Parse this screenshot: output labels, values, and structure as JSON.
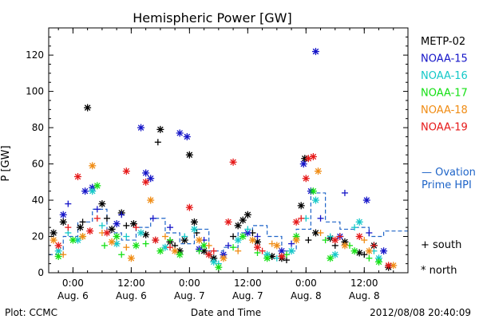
{
  "chart_data": {
    "type": "scatter",
    "title": "Hemispheric Power [GW]",
    "xlabel": "Date and Time",
    "ylabel": "P [GW]",
    "ylim": [
      0,
      135
    ],
    "yticks": [
      0,
      20,
      40,
      60,
      80,
      100,
      120
    ],
    "xlim": [
      "2012-08-05 19:00",
      "2012-08-08 21:00"
    ],
    "xticks": [
      {
        "time": "2012-08-06 00:00",
        "line1": "0:00",
        "line2": "Aug. 6"
      },
      {
        "time": "2012-08-06 12:00",
        "line1": "12:00",
        "line2": "Aug. 6"
      },
      {
        "time": "2012-08-07 00:00",
        "line1": "0:00",
        "line2": "Aug. 7"
      },
      {
        "time": "2012-08-07 12:00",
        "line1": "12:00",
        "line2": "Aug. 7"
      },
      {
        "time": "2012-08-08 00:00",
        "line1": "0:00",
        "line2": "Aug. 8"
      },
      {
        "time": "2012-08-08 12:00",
        "line1": "12:00",
        "line2": "Aug. 8"
      }
    ],
    "legend_position": "right",
    "markers": {
      "south": "+",
      "north": "*"
    },
    "series": [
      {
        "name": "METP-02",
        "color": "#000000",
        "north": [
          [
            "2012-08-05 20:00",
            22
          ],
          [
            "2012-08-05 22:00",
            28
          ],
          [
            "2012-08-06 01:30",
            25
          ],
          [
            "2012-08-06 03:00",
            91
          ],
          [
            "2012-08-06 06:00",
            38
          ],
          [
            "2012-08-06 08:00",
            24
          ],
          [
            "2012-08-06 10:00",
            33
          ],
          [
            "2012-08-06 12:30",
            27
          ],
          [
            "2012-08-06 15:00",
            21
          ],
          [
            "2012-08-06 18:00",
            79
          ],
          [
            "2012-08-06 20:00",
            17
          ],
          [
            "2012-08-06 22:00",
            12
          ],
          [
            "2012-08-06 23:00",
            18
          ],
          [
            "2012-08-07 00:00",
            65
          ],
          [
            "2012-08-07 01:00",
            28
          ],
          [
            "2012-08-07 03:00",
            12
          ],
          [
            "2012-08-07 05:00",
            8
          ],
          [
            "2012-08-07 10:00",
            26
          ],
          [
            "2012-08-07 11:00",
            29
          ],
          [
            "2012-08-07 12:00",
            32
          ],
          [
            "2012-08-07 14:00",
            17
          ],
          [
            "2012-08-07 17:00",
            9
          ],
          [
            "2012-08-07 19:00",
            8
          ],
          [
            "2012-08-07 23:00",
            37
          ],
          [
            "2012-08-07 23:45",
            63
          ],
          [
            "2012-08-08 02:00",
            22
          ],
          [
            "2012-08-08 05:00",
            19
          ],
          [
            "2012-08-08 08:00",
            17
          ],
          [
            "2012-08-08 11:00",
            11
          ],
          [
            "2012-08-08 14:00",
            15
          ],
          [
            "2012-08-08 17:00",
            3
          ]
        ],
        "south": [
          [
            "2012-08-06 02:00",
            28
          ],
          [
            "2012-08-06 07:00",
            30
          ],
          [
            "2012-08-06 11:00",
            26
          ],
          [
            "2012-08-06 17:30",
            72
          ],
          [
            "2012-08-06 21:00",
            15
          ],
          [
            "2012-08-07 01:30",
            22
          ],
          [
            "2012-08-07 04:00",
            10
          ],
          [
            "2012-08-07 09:00",
            20
          ],
          [
            "2012-08-07 13:00",
            22
          ],
          [
            "2012-08-07 20:00",
            7
          ],
          [
            "2012-08-08 00:30",
            18
          ],
          [
            "2012-08-08 06:00",
            15
          ],
          [
            "2012-08-08 12:00",
            10
          ]
        ]
      },
      {
        "name": "NOAA-15",
        "color": "#1515c8",
        "north": [
          [
            "2012-08-05 22:00",
            32
          ],
          [
            "2012-08-06 02:30",
            45
          ],
          [
            "2012-08-06 04:00",
            47
          ],
          [
            "2012-08-06 09:00",
            27
          ],
          [
            "2012-08-06 14:00",
            80
          ],
          [
            "2012-08-06 15:00",
            55
          ],
          [
            "2012-08-06 16:00",
            52
          ],
          [
            "2012-08-06 22:00",
            77
          ],
          [
            "2012-08-06 23:30",
            75
          ],
          [
            "2012-08-07 02:00",
            13
          ],
          [
            "2012-08-07 07:00",
            10
          ],
          [
            "2012-08-07 12:00",
            22
          ],
          [
            "2012-08-07 19:00",
            12
          ],
          [
            "2012-08-07 23:30",
            60
          ],
          [
            "2012-08-08 01:00",
            45
          ],
          [
            "2012-08-08 02:00",
            122
          ],
          [
            "2012-08-08 07:00",
            20
          ],
          [
            "2012-08-08 12:30",
            40
          ],
          [
            "2012-08-08 16:00",
            12
          ]
        ],
        "south": [
          [
            "2012-08-05 23:00",
            38
          ],
          [
            "2012-08-06 05:00",
            35
          ],
          [
            "2012-08-06 10:00",
            32
          ],
          [
            "2012-08-06 16:30",
            30
          ],
          [
            "2012-08-06 20:00",
            25
          ],
          [
            "2012-08-07 03:00",
            18
          ],
          [
            "2012-08-07 08:00",
            15
          ],
          [
            "2012-08-07 14:00",
            20
          ],
          [
            "2012-08-07 21:00",
            16
          ],
          [
            "2012-08-08 03:00",
            30
          ],
          [
            "2012-08-08 08:00",
            44
          ],
          [
            "2012-08-08 13:00",
            22
          ]
        ]
      },
      {
        "name": "NOAA-16",
        "color": "#15c8c8",
        "north": [
          [
            "2012-08-05 21:00",
            12
          ],
          [
            "2012-08-06 01:00",
            18
          ],
          [
            "2012-08-06 04:00",
            45
          ],
          [
            "2012-08-06 09:00",
            16
          ],
          [
            "2012-08-06 14:00",
            22
          ],
          [
            "2012-08-06 19:00",
            14
          ],
          [
            "2012-08-07 01:00",
            24
          ],
          [
            "2012-08-07 05:00",
            6
          ],
          [
            "2012-08-07 10:00",
            18
          ],
          [
            "2012-08-07 16:00",
            10
          ],
          [
            "2012-08-07 21:00",
            12
          ],
          [
            "2012-08-08 02:00",
            40
          ],
          [
            "2012-08-08 06:00",
            10
          ],
          [
            "2012-08-08 11:00",
            28
          ],
          [
            "2012-08-08 15:00",
            8
          ]
        ],
        "south": [
          [
            "2012-08-05 23:00",
            22
          ],
          [
            "2012-08-06 06:00",
            26
          ],
          [
            "2012-08-06 11:00",
            20
          ],
          [
            "2012-08-06 17:00",
            18
          ],
          [
            "2012-08-06 23:00",
            20
          ],
          [
            "2012-08-07 06:00",
            5
          ],
          [
            "2012-08-07 12:00",
            24
          ],
          [
            "2012-08-07 18:00",
            8
          ],
          [
            "2012-08-08 00:00",
            30
          ],
          [
            "2012-08-08 05:00",
            20
          ],
          [
            "2012-08-08 10:00",
            25
          ],
          [
            "2012-08-08 14:00",
            12
          ]
        ]
      },
      {
        "name": "NOAA-17",
        "color": "#15e015",
        "north": [
          [
            "2012-08-05 21:00",
            9
          ],
          [
            "2012-08-06 00:00",
            18
          ],
          [
            "2012-08-06 05:00",
            48
          ],
          [
            "2012-08-06 09:00",
            20
          ],
          [
            "2012-08-06 13:00",
            15
          ],
          [
            "2012-08-06 18:00",
            12
          ],
          [
            "2012-08-06 22:00",
            10
          ],
          [
            "2012-08-07 03:00",
            15
          ],
          [
            "2012-08-07 06:00",
            3
          ],
          [
            "2012-08-07 11:00",
            20
          ],
          [
            "2012-08-07 16:00",
            8
          ],
          [
            "2012-08-07 22:00",
            20
          ],
          [
            "2012-08-08 01:30",
            45
          ],
          [
            "2012-08-08 05:00",
            8
          ],
          [
            "2012-08-08 10:00",
            12
          ],
          [
            "2012-08-08 15:00",
            6
          ]
        ],
        "south": [
          [
            "2012-08-06 02:00",
            20
          ],
          [
            "2012-08-06 06:30",
            15
          ],
          [
            "2012-08-06 10:00",
            10
          ],
          [
            "2012-08-06 15:00",
            16
          ],
          [
            "2012-08-06 20:00",
            18
          ],
          [
            "2012-08-07 02:00",
            12
          ],
          [
            "2012-08-07 09:00",
            14
          ],
          [
            "2012-08-07 14:00",
            11
          ],
          [
            "2012-08-07 20:00",
            10
          ],
          [
            "2012-08-08 04:00",
            18
          ],
          [
            "2012-08-08 09:00",
            15
          ],
          [
            "2012-08-08 13:00",
            8
          ]
        ]
      },
      {
        "name": "NOAA-18",
        "color": "#f08c14",
        "north": [
          [
            "2012-08-05 20:00",
            18
          ],
          [
            "2012-08-06 02:00",
            20
          ],
          [
            "2012-08-06 04:00",
            59
          ],
          [
            "2012-08-06 08:00",
            17
          ],
          [
            "2012-08-06 12:00",
            8
          ],
          [
            "2012-08-06 16:00",
            40
          ],
          [
            "2012-08-06 21:00",
            12
          ],
          [
            "2012-08-07 02:00",
            18
          ],
          [
            "2012-08-07 07:00",
            8
          ],
          [
            "2012-08-07 13:00",
            18
          ],
          [
            "2012-08-07 18:00",
            15
          ],
          [
            "2012-08-07 22:00",
            18
          ],
          [
            "2012-08-08 02:30",
            56
          ],
          [
            "2012-08-08 08:00",
            15
          ],
          [
            "2012-08-08 13:00",
            12
          ],
          [
            "2012-08-08 18:00",
            4
          ]
        ],
        "south": [
          [
            "2012-08-05 22:00",
            10
          ],
          [
            "2012-08-06 06:00",
            22
          ],
          [
            "2012-08-06 11:00",
            14
          ],
          [
            "2012-08-06 19:00",
            20
          ],
          [
            "2012-08-07 04:00",
            15
          ],
          [
            "2012-08-07 10:00",
            12
          ],
          [
            "2012-08-07 17:00",
            16
          ],
          [
            "2012-08-08 03:00",
            22
          ],
          [
            "2012-08-08 12:00",
            18
          ]
        ]
      },
      {
        "name": "NOAA-19",
        "color": "#e61919",
        "north": [
          [
            "2012-08-05 21:00",
            15
          ],
          [
            "2012-08-06 01:00",
            53
          ],
          [
            "2012-08-06 03:30",
            23
          ],
          [
            "2012-08-06 07:00",
            22
          ],
          [
            "2012-08-06 11:00",
            56
          ],
          [
            "2012-08-06 15:00",
            50
          ],
          [
            "2012-08-06 17:00",
            18
          ],
          [
            "2012-08-07 00:00",
            36
          ],
          [
            "2012-08-07 04:00",
            10
          ],
          [
            "2012-08-07 08:00",
            28
          ],
          [
            "2012-08-07 09:00",
            61
          ],
          [
            "2012-08-07 14:00",
            14
          ],
          [
            "2012-08-07 19:00",
            9
          ],
          [
            "2012-08-07 22:00",
            28
          ],
          [
            "2012-08-08 00:00",
            52
          ],
          [
            "2012-08-08 00:30",
            63
          ],
          [
            "2012-08-08 01:30",
            64
          ],
          [
            "2012-08-08 06:00",
            18
          ],
          [
            "2012-08-08 11:00",
            20
          ],
          [
            "2012-08-08 17:00",
            4
          ]
        ],
        "south": [
          [
            "2012-08-05 23:00",
            25
          ],
          [
            "2012-08-06 05:00",
            30
          ],
          [
            "2012-08-06 13:00",
            25
          ],
          [
            "2012-08-06 20:00",
            14
          ],
          [
            "2012-08-07 05:00",
            12
          ],
          [
            "2012-08-07 15:00",
            12
          ],
          [
            "2012-08-07 23:00",
            30
          ],
          [
            "2012-08-08 07:00",
            20
          ],
          [
            "2012-08-08 14:00",
            15
          ]
        ]
      }
    ],
    "model": {
      "name": "Ovation Prime HPI",
      "color": "#1e64c8",
      "steps": [
        [
          "2012-08-05 19:00",
          10
        ],
        [
          "2012-08-05 22:00",
          20
        ],
        [
          "2012-08-06 01:00",
          28
        ],
        [
          "2012-08-06 04:00",
          35
        ],
        [
          "2012-08-06 07:00",
          22
        ],
        [
          "2012-08-06 10:00",
          18
        ],
        [
          "2012-08-06 13:00",
          25
        ],
        [
          "2012-08-06 16:00",
          30
        ],
        [
          "2012-08-06 19:00",
          22
        ],
        [
          "2012-08-06 22:00",
          16
        ],
        [
          "2012-08-07 01:00",
          24
        ],
        [
          "2012-08-07 04:00",
          12
        ],
        [
          "2012-08-07 07:00",
          14
        ],
        [
          "2012-08-07 10:00",
          22
        ],
        [
          "2012-08-07 13:00",
          26
        ],
        [
          "2012-08-07 16:00",
          20
        ],
        [
          "2012-08-07 19:00",
          12
        ],
        [
          "2012-08-07 22:00",
          24
        ],
        [
          "2012-08-08 01:00",
          44
        ],
        [
          "2012-08-08 04:00",
          28
        ],
        [
          "2012-08-08 07:00",
          24
        ],
        [
          "2012-08-08 10:00",
          25
        ],
        [
          "2012-08-08 13:00",
          20
        ],
        [
          "2012-08-08 16:00",
          23
        ],
        [
          "2012-08-08 21:00",
          23
        ]
      ]
    }
  },
  "footer": {
    "left": "Plot: CCMC",
    "center": "Date and Time",
    "right": "2012/08/08 20:40:09"
  },
  "legend": {
    "model_line1": "— Ovation",
    "model_line2": "Prime HPI",
    "south_label": "+ south",
    "north_label": "* north"
  }
}
